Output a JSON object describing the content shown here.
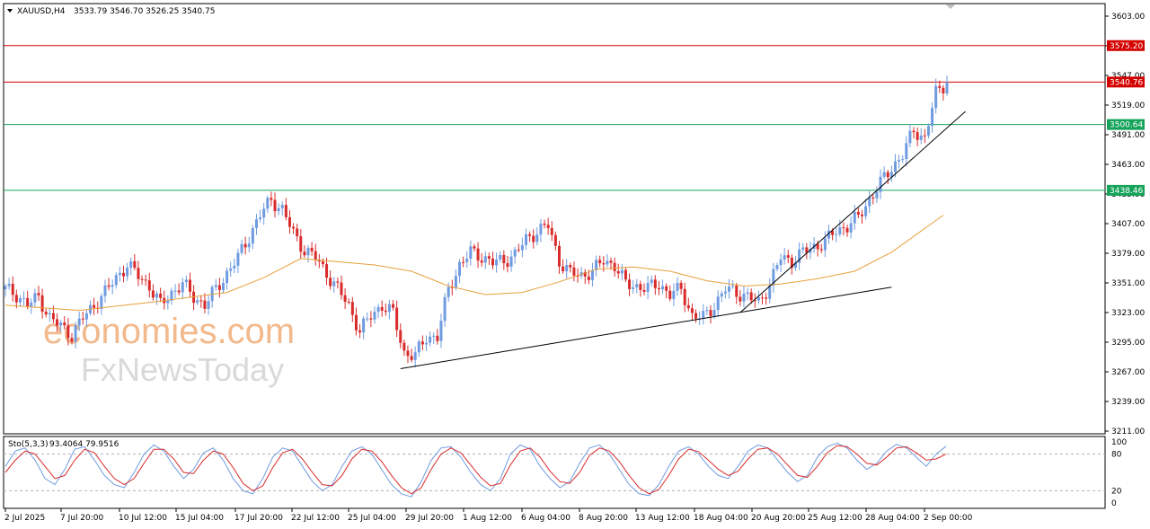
{
  "header": {
    "symbol": "XAUUSD,H4",
    "ohlc": "3533.79 3546.70 3526.25 3540.75"
  },
  "colors": {
    "bull": "#6f9be0",
    "bear": "#d92b2b",
    "ma": "#e8a13c",
    "red_level": "#d40000",
    "green_level": "#15a35a",
    "stoch_main": "#6f9be0",
    "stoch_signal": "#d92b2b"
  },
  "chart_data": [
    {
      "type": "candlestick",
      "title": "XAUUSD,H4",
      "y_ticks": [
        "3603.00",
        "3575.00",
        "3547.00",
        "3519.00",
        "3491.00",
        "3463.00",
        "3435.00",
        "3407.00",
        "3379.00",
        "3351.00",
        "3323.00",
        "3295.00",
        "3267.00",
        "3239.00",
        "3211.00"
      ],
      "ylim": [
        3211,
        3612
      ],
      "x_ticks": [
        "2 Jul 2025",
        "7 Jul 20:00",
        "10 Jul 12:00",
        "15 Jul 04:00",
        "17 Jul 20:00",
        "22 Jul 12:00",
        "25 Jul 04:00",
        "29 Jul 20:00",
        "1 Aug 12:00",
        "6 Aug 04:00",
        "8 Aug 20:00",
        "13 Aug 12:00",
        "18 Aug 04:00",
        "20 Aug 20:00",
        "25 Aug 12:00",
        "28 Aug 04:00",
        "2 Sep 00:00"
      ],
      "close_path": [
        [
          0,
          3345
        ],
        [
          3,
          3340
        ],
        [
          6,
          3330
        ],
        [
          9,
          3338
        ],
        [
          12,
          3318
        ],
        [
          15,
          3310
        ],
        [
          18,
          3302
        ],
        [
          21,
          3318
        ],
        [
          24,
          3330
        ],
        [
          27,
          3342
        ],
        [
          30,
          3356
        ],
        [
          33,
          3368
        ],
        [
          36,
          3358
        ],
        [
          39,
          3348
        ],
        [
          42,
          3330
        ],
        [
          45,
          3342
        ],
        [
          48,
          3350
        ],
        [
          51,
          3338
        ],
        [
          54,
          3330
        ],
        [
          57,
          3345
        ],
        [
          60,
          3360
        ],
        [
          63,
          3375
        ],
        [
          66,
          3395
        ],
        [
          69,
          3415
        ],
        [
          72,
          3430
        ],
        [
          75,
          3420
        ],
        [
          78,
          3398
        ],
        [
          81,
          3382
        ],
        [
          84,
          3375
        ],
        [
          87,
          3360
        ],
        [
          90,
          3345
        ],
        [
          93,
          3330
        ],
        [
          96,
          3305
        ],
        [
          99,
          3320
        ],
        [
          102,
          3330
        ],
        [
          105,
          3322
        ],
        [
          108,
          3285
        ],
        [
          111,
          3282
        ],
        [
          114,
          3300
        ],
        [
          117,
          3300
        ],
        [
          120,
          3345
        ],
        [
          123,
          3368
        ],
        [
          126,
          3380
        ],
        [
          129,
          3376
        ],
        [
          132,
          3370
        ],
        [
          135,
          3372
        ],
        [
          138,
          3378
        ],
        [
          141,
          3392
        ],
        [
          144,
          3400
        ],
        [
          147,
          3405
        ],
        [
          150,
          3372
        ],
        [
          153,
          3360
        ],
        [
          156,
          3358
        ],
        [
          159,
          3362
        ],
        [
          162,
          3372
        ],
        [
          165,
          3368
        ],
        [
          168,
          3350
        ],
        [
          171,
          3348
        ],
        [
          174,
          3346
        ],
        [
          177,
          3350
        ],
        [
          180,
          3340
        ],
        [
          183,
          3345
        ],
        [
          186,
          3320
        ],
        [
          189,
          3318
        ],
        [
          192,
          3330
        ],
        [
          195,
          3345
        ],
        [
          198,
          3342
        ],
        [
          201,
          3338
        ],
        [
          204,
          3332
        ],
        [
          207,
          3350
        ],
        [
          210,
          3375
        ],
        [
          213,
          3372
        ],
        [
          216,
          3380
        ],
        [
          219,
          3385
        ],
        [
          222,
          3390
        ],
        [
          225,
          3400
        ],
        [
          228,
          3405
        ],
        [
          231,
          3413
        ],
        [
          234,
          3430
        ],
        [
          237,
          3445
        ],
        [
          240,
          3460
        ],
        [
          243,
          3472
        ],
        [
          246,
          3495
        ],
        [
          249,
          3488
        ],
        [
          252,
          3530
        ],
        [
          255,
          3540.75
        ]
      ],
      "ma_path": [
        [
          0,
          3330
        ],
        [
          20,
          3325
        ],
        [
          40,
          3333
        ],
        [
          60,
          3342
        ],
        [
          70,
          3356
        ],
        [
          80,
          3374
        ],
        [
          90,
          3371
        ],
        [
          100,
          3368
        ],
        [
          110,
          3362
        ],
        [
          120,
          3348
        ],
        [
          130,
          3340
        ],
        [
          140,
          3342
        ],
        [
          150,
          3352
        ],
        [
          160,
          3364
        ],
        [
          170,
          3366
        ],
        [
          180,
          3362
        ],
        [
          190,
          3353
        ],
        [
          200,
          3348
        ],
        [
          210,
          3350
        ],
        [
          220,
          3355
        ],
        [
          230,
          3362
        ],
        [
          240,
          3380
        ],
        [
          250,
          3405
        ],
        [
          254,
          3415
        ]
      ],
      "levels": [
        {
          "label": "3575.20",
          "value": 3575.2,
          "color": "red"
        },
        {
          "label": "3540.76",
          "value": 3540.76,
          "color": "red"
        },
        {
          "label": "3500.64",
          "value": 3500.64,
          "color": "green"
        },
        {
          "label": "3438.46",
          "value": 3438.46,
          "color": "green"
        }
      ],
      "trendlines": [
        {
          "from": [
            107,
            3270
          ],
          "to": [
            240,
            3347
          ]
        },
        {
          "from": [
            199,
            3323
          ],
          "to": [
            260,
            3513
          ]
        }
      ]
    },
    {
      "type": "line",
      "title": "Sto(5,3,3) 93.4064 79.9516",
      "label": "Sto(5,3,3)",
      "values_text": "93.4064 79.9516",
      "ylim": [
        0,
        100
      ],
      "y_ticks": [
        "100",
        "80",
        "20",
        "0"
      ],
      "levels": [
        80,
        20
      ],
      "series": [
        {
          "values": [
            60,
            85,
            90,
            70,
            40,
            30,
            55,
            88,
            92,
            70,
            45,
            30,
            25,
            50,
            80,
            95,
            85,
            60,
            40,
            55,
            82,
            90,
            70,
            40,
            20,
            15,
            40,
            75,
            90,
            85,
            60,
            35,
            20,
            30,
            60,
            85,
            92,
            80,
            55,
            30,
            15,
            10,
            35,
            70,
            90,
            92,
            75,
            50,
            30,
            20,
            40,
            80,
            95,
            88,
            60,
            40,
            25,
            35,
            65,
            90,
            95,
            80,
            55,
            30,
            15,
            12,
            30,
            60,
            85,
            92,
            80,
            60,
            45,
            40,
            60,
            85,
            95,
            90,
            70,
            50,
            35,
            45,
            75,
            92,
            98,
            90,
            70,
            55,
            65,
            85,
            96,
            90,
            75,
            60,
            80,
            93
          ]
        },
        {
          "values": [
            50,
            70,
            85,
            80,
            60,
            40,
            45,
            70,
            88,
            82,
            60,
            40,
            30,
            40,
            65,
            88,
            88,
            72,
            50,
            48,
            70,
            85,
            80,
            58,
            32,
            20,
            28,
            58,
            82,
            88,
            72,
            50,
            30,
            28,
            45,
            72,
            88,
            85,
            68,
            45,
            25,
            15,
            25,
            55,
            80,
            90,
            82,
            62,
            42,
            28,
            32,
            62,
            85,
            90,
            75,
            52,
            35,
            32,
            50,
            78,
            90,
            85,
            68,
            45,
            25,
            15,
            22,
            45,
            72,
            88,
            84,
            70,
            55,
            45,
            52,
            72,
            88,
            90,
            80,
            62,
            45,
            42,
            60,
            82,
            94,
            92,
            80,
            65,
            62,
            75,
            90,
            92,
            82,
            70,
            72,
            80
          ]
        }
      ]
    }
  ]
}
